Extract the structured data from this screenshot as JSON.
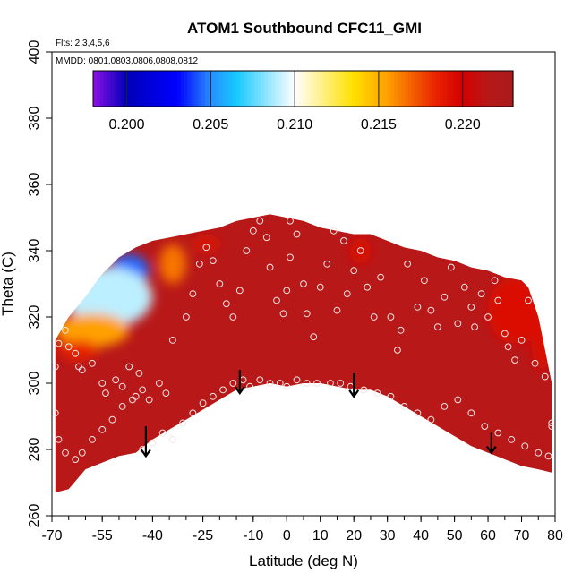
{
  "chart_data": {
    "type": "heatmap",
    "title": "ATOM1 Southbound CFC11_GMI",
    "note_flights": "Flts: 2,3,4,5,6",
    "note_dates": "MMDD: 0801,0803,0806,0808,0812",
    "xlabel": "Latitude (deg N)",
    "ylabel": "Theta (C)",
    "xlim": [
      -70,
      80
    ],
    "ylim": [
      260,
      400
    ],
    "x_ticks": [
      "-70",
      "-55",
      "-40",
      "-25",
      "-10",
      "0",
      "10",
      "20",
      "30",
      "40",
      "50",
      "60",
      "70",
      "80"
    ],
    "x_tick_values": [
      -70,
      -55,
      -40,
      -25,
      -10,
      0,
      10,
      20,
      30,
      40,
      50,
      60,
      70,
      80
    ],
    "x_minor_step": 5,
    "y_ticks": [
      "260",
      "280",
      "300",
      "320",
      "340",
      "360",
      "380",
      "400"
    ],
    "y_tick_values": [
      260,
      280,
      300,
      320,
      340,
      360,
      380,
      400
    ],
    "colorbar": {
      "range": [
        0.198,
        0.223
      ],
      "ticks": [
        "0.200",
        "0.205",
        "0.210",
        "0.215",
        "0.220"
      ],
      "tick_values": [
        0.2,
        0.205,
        0.21,
        0.215,
        0.22
      ],
      "colors": [
        "#8b10e6",
        "#0000b8",
        "#0000ff",
        "#2a8cff",
        "#15c8ff",
        "#ffffff",
        "#ffe000",
        "#ffa000",
        "#e82000",
        "#d40000",
        "#b81818",
        "#a81c1c"
      ],
      "color_stops": [
        0.198,
        0.2,
        0.203,
        0.205,
        0.2065,
        0.21,
        0.2135,
        0.2155,
        0.2185,
        0.22,
        0.2215,
        0.223
      ]
    },
    "field": {
      "background_value": 0.2215,
      "upper_boundary": [
        [
          -69,
          313
        ],
        [
          -65,
          320
        ],
        [
          -60,
          326
        ],
        [
          -55,
          333
        ],
        [
          -50,
          338
        ],
        [
          -45,
          341
        ],
        [
          -40,
          343
        ],
        [
          -35,
          344
        ],
        [
          -30,
          345
        ],
        [
          -25,
          346
        ],
        [
          -20,
          347
        ],
        [
          -15,
          349
        ],
        [
          -10,
          350
        ],
        [
          -5,
          351
        ],
        [
          0,
          350
        ],
        [
          5,
          349
        ],
        [
          10,
          347
        ],
        [
          15,
          346
        ],
        [
          20,
          345
        ],
        [
          25,
          345
        ],
        [
          30,
          343
        ],
        [
          35,
          341
        ],
        [
          40,
          340
        ],
        [
          45,
          338
        ],
        [
          50,
          337
        ],
        [
          55,
          335
        ],
        [
          60,
          334
        ],
        [
          65,
          332
        ],
        [
          70,
          331
        ],
        [
          72,
          329
        ],
        [
          75,
          320
        ],
        [
          77,
          310
        ],
        [
          79,
          300
        ]
      ],
      "lower_boundary": [
        [
          79,
          273
        ],
        [
          75,
          274
        ],
        [
          70,
          275
        ],
        [
          65,
          277
        ],
        [
          60,
          279
        ],
        [
          55,
          281
        ],
        [
          50,
          284
        ],
        [
          45,
          287
        ],
        [
          40,
          290
        ],
        [
          35,
          293
        ],
        [
          30,
          296
        ],
        [
          25,
          298
        ],
        [
          20,
          298
        ],
        [
          15,
          299
        ],
        [
          10,
          300
        ],
        [
          5,
          300
        ],
        [
          0,
          299
        ],
        [
          -5,
          300
        ],
        [
          -10,
          299
        ],
        [
          -15,
          298
        ],
        [
          -20,
          295
        ],
        [
          -25,
          292
        ],
        [
          -30,
          289
        ],
        [
          -35,
          286
        ],
        [
          -40,
          283
        ],
        [
          -45,
          279
        ],
        [
          -50,
          278
        ],
        [
          -55,
          276
        ],
        [
          -60,
          274
        ],
        [
          -65,
          268
        ],
        [
          -69,
          267
        ]
      ],
      "anomalies": [
        {
          "x": -47,
          "y": 334,
          "rx": 6,
          "ry": 5,
          "value": 0.2045
        },
        {
          "x": -53,
          "y": 326,
          "rx": 13,
          "ry": 9,
          "value": 0.209
        },
        {
          "x": -58,
          "y": 316,
          "rx": 11,
          "ry": 5,
          "value": 0.2155
        },
        {
          "x": -62,
          "y": 310,
          "rx": 6,
          "ry": 3,
          "value": 0.2185
        },
        {
          "x": -34,
          "y": 336,
          "rx": 4,
          "ry": 6,
          "value": 0.2165
        },
        {
          "x": -24,
          "y": 342,
          "rx": 4,
          "ry": 2,
          "value": 0.219
        },
        {
          "x": 22,
          "y": 340,
          "rx": 3,
          "ry": 4,
          "value": 0.2195
        },
        {
          "x": 68,
          "y": 322,
          "rx": 8,
          "ry": 10,
          "value": 0.2195
        },
        {
          "x": 76,
          "y": 312,
          "rx": 3,
          "ry": 8,
          "value": 0.2195
        }
      ]
    },
    "points": [
      [
        -68,
        312
      ],
      [
        -66,
        316
      ],
      [
        -65,
        311
      ],
      [
        -63,
        309
      ],
      [
        -62,
        305
      ],
      [
        -61,
        304
      ],
      [
        -58,
        306
      ],
      [
        -55,
        300
      ],
      [
        -54,
        297
      ],
      [
        -51,
        301
      ],
      [
        -49,
        299
      ],
      [
        -47,
        305
      ],
      [
        -45,
        296
      ],
      [
        -44,
        303
      ],
      [
        -43,
        298
      ],
      [
        -41,
        295
      ],
      [
        -38,
        300
      ],
      [
        -36,
        297
      ],
      [
        -34,
        313
      ],
      [
        -30,
        320
      ],
      [
        -28,
        327
      ],
      [
        -26,
        336
      ],
      [
        -24,
        341
      ],
      [
        -22,
        337
      ],
      [
        -20,
        330
      ],
      [
        -18,
        324
      ],
      [
        -16,
        320
      ],
      [
        -14,
        328
      ],
      [
        -12,
        340
      ],
      [
        -10,
        346
      ],
      [
        -8,
        349
      ],
      [
        -6,
        344
      ],
      [
        -5,
        335
      ],
      [
        -3,
        325
      ],
      [
        -1,
        321
      ],
      [
        0,
        328
      ],
      [
        1,
        338
      ],
      [
        1,
        349
      ],
      [
        3,
        345
      ],
      [
        5,
        330
      ],
      [
        6,
        321
      ],
      [
        8,
        314
      ],
      [
        10,
        329
      ],
      [
        12,
        336
      ],
      [
        14,
        346
      ],
      [
        15,
        322
      ],
      [
        17,
        343
      ],
      [
        18,
        327
      ],
      [
        20,
        334
      ],
      [
        22,
        340
      ],
      [
        24,
        329
      ],
      [
        26,
        320
      ],
      [
        28,
        332
      ],
      [
        31,
        320
      ],
      [
        33,
        310
      ],
      [
        34,
        316
      ],
      [
        36,
        336
      ],
      [
        39,
        323
      ],
      [
        41,
        331
      ],
      [
        43,
        322
      ],
      [
        45,
        317
      ],
      [
        47,
        326
      ],
      [
        49,
        335
      ],
      [
        51,
        318
      ],
      [
        53,
        329
      ],
      [
        55,
        323
      ],
      [
        56,
        317
      ],
      [
        58,
        327
      ],
      [
        60,
        320
      ],
      [
        62,
        331
      ],
      [
        63,
        325
      ],
      [
        65,
        315
      ],
      [
        66,
        311
      ],
      [
        68,
        307
      ],
      [
        70,
        313
      ],
      [
        72,
        325
      ],
      [
        74,
        306
      ],
      [
        77,
        302
      ],
      [
        -69,
        291
      ],
      [
        -68,
        283
      ],
      [
        -66,
        279
      ],
      [
        -63,
        277
      ],
      [
        -61,
        279
      ],
      [
        -58,
        283
      ],
      [
        -55,
        286
      ],
      [
        -52,
        289
      ],
      [
        -49,
        293
      ],
      [
        -46,
        295
      ],
      [
        -43,
        280
      ],
      [
        -40,
        282
      ],
      [
        -37,
        285
      ],
      [
        -34,
        283
      ],
      [
        -31,
        288
      ],
      [
        -28,
        291
      ],
      [
        -25,
        294
      ],
      [
        -22,
        296
      ],
      [
        -19,
        298
      ],
      [
        -16,
        300
      ],
      [
        -13,
        301
      ],
      [
        -11,
        299
      ],
      [
        -8,
        301
      ],
      [
        -5,
        300
      ],
      [
        -2,
        300
      ],
      [
        0,
        299
      ],
      [
        3,
        301
      ],
      [
        6,
        300
      ],
      [
        9,
        300
      ],
      [
        13,
        300
      ],
      [
        16,
        300
      ],
      [
        19,
        299
      ],
      [
        23,
        298
      ],
      [
        27,
        297
      ],
      [
        31,
        296
      ],
      [
        35,
        293
      ],
      [
        39,
        291
      ],
      [
        43,
        289
      ],
      [
        47,
        293
      ],
      [
        51,
        295
      ],
      [
        55,
        291
      ],
      [
        59,
        287
      ],
      [
        63,
        285
      ],
      [
        67,
        283
      ],
      [
        71,
        281
      ],
      [
        75,
        279
      ],
      [
        78,
        278
      ],
      [
        79,
        288
      ],
      [
        79,
        287
      ],
      [
        -69,
        305
      ]
    ],
    "arrows": [
      {
        "x": -42,
        "y_from": 287,
        "y_to": 278
      },
      {
        "x": -14,
        "y_from": 304,
        "y_to": 297
      },
      {
        "x": 20,
        "y_from": 303,
        "y_to": 296
      },
      {
        "x": 61,
        "y_from": 285,
        "y_to": 279
      }
    ]
  }
}
